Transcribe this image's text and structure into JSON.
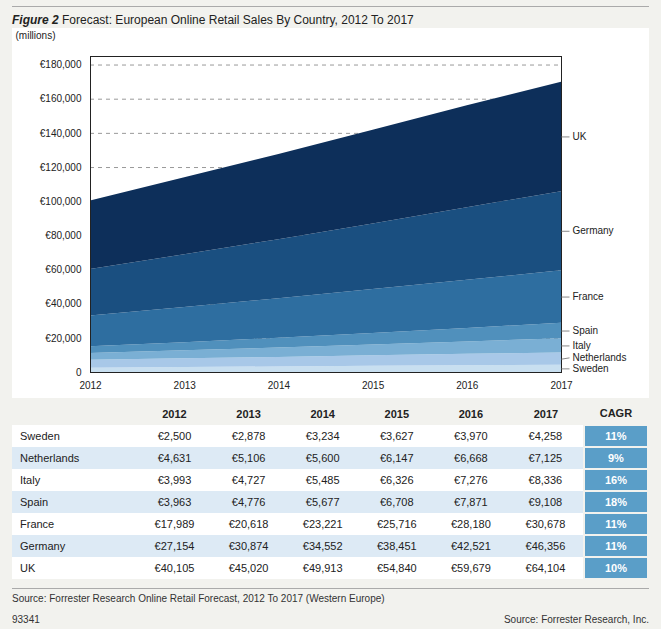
{
  "chart_data": {
    "type": "area",
    "stacked": true,
    "title": "Figure 2",
    "subtitle": "Forecast: European Online Retail Sales By Country, 2012 To 2017",
    "ylabel": "(millions)",
    "x": [
      2012,
      2013,
      2014,
      2015,
      2016,
      2017
    ],
    "xlim": [
      2012,
      2017
    ],
    "xticks": [
      2012,
      2013,
      2014,
      2015,
      2016,
      2017
    ],
    "ylim": [
      0,
      185000
    ],
    "yticks": [
      0,
      {
        "value": 20000,
        "label": "€20,000"
      },
      {
        "value": 40000,
        "label": "€40,000"
      },
      {
        "value": 60000,
        "label": "€60,000"
      },
      {
        "value": 80000,
        "label": "€80,000"
      },
      {
        "value": 100000,
        "label": "€100,000"
      },
      {
        "value": 120000,
        "label": "€120,000"
      },
      {
        "value": 140000,
        "label": "€140,000"
      },
      {
        "value": 160000,
        "label": "€160,000"
      },
      {
        "value": 180000,
        "label": "€180,000"
      }
    ],
    "grid": true,
    "cagr_title": "CAGR",
    "series": [
      {
        "name": "Sweden",
        "color": "#c8dff0",
        "values": [
          2500,
          2878,
          3234,
          3627,
          3970,
          4258
        ],
        "value_labels": [
          "€2,500",
          "€2,878",
          "€3,234",
          "€3,627",
          "€3,970",
          "€4,258"
        ],
        "cagr": "11%"
      },
      {
        "name": "Netherlands",
        "color": "#a8c8e8",
        "values": [
          4631,
          5106,
          5600,
          6147,
          6668,
          7125
        ],
        "value_labels": [
          "€4,631",
          "€5,106",
          "€5,600",
          "€6,147",
          "€6,668",
          "€7,125"
        ],
        "cagr": "9%"
      },
      {
        "name": "Italy",
        "color": "#7aafd4",
        "values": [
          3993,
          4727,
          5485,
          6326,
          7276,
          8336
        ],
        "value_labels": [
          "€3,993",
          "€4,727",
          "€5,485",
          "€6,326",
          "€7,276",
          "€8,336"
        ],
        "cagr": "16%"
      },
      {
        "name": "Spain",
        "color": "#5090bc",
        "values": [
          3963,
          4776,
          5677,
          6708,
          7871,
          9108
        ],
        "value_labels": [
          "€3,963",
          "€4,776",
          "€5,677",
          "€6,708",
          "€7,871",
          "€9,108"
        ],
        "cagr": "18%"
      },
      {
        "name": "France",
        "color": "#2e6ea0",
        "values": [
          17989,
          20618,
          23221,
          25716,
          28180,
          30678
        ],
        "value_labels": [
          "€17,989",
          "€20,618",
          "€23,221",
          "€25,716",
          "€28,180",
          "€30,678"
        ],
        "cagr": "11%"
      },
      {
        "name": "Germany",
        "color": "#1a4f80",
        "values": [
          27154,
          30874,
          34552,
          38451,
          42521,
          46356
        ],
        "value_labels": [
          "€27,154",
          "€30,874",
          "€34,552",
          "€38,451",
          "€42,521",
          "€46,356"
        ],
        "cagr": "11%"
      },
      {
        "name": "UK",
        "color": "#0d2f5a",
        "values": [
          40105,
          45020,
          49913,
          54840,
          59679,
          64104
        ],
        "value_labels": [
          "€40,105",
          "€45,020",
          "€49,913",
          "€54,840",
          "€59,679",
          "€64,104"
        ],
        "cagr": "10%"
      }
    ],
    "annotations": [
      "Source: Forrester Research Online Retail Forecast, 2012 To 2017 (Western Europe)",
      "93341",
      "Source: Forrester Research, Inc."
    ]
  }
}
